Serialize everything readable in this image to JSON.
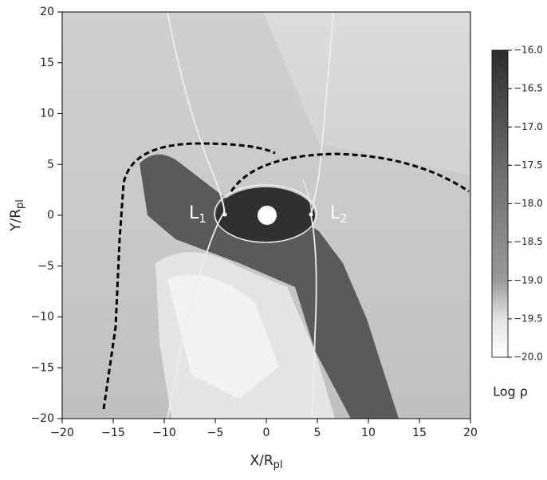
{
  "chart_data": {
    "type": "image",
    "xlabel": {
      "text": "X/R",
      "sub": "pl"
    },
    "ylabel": {
      "text": "Y/R",
      "sub": "pl"
    },
    "xlim": [
      -20,
      20
    ],
    "ylim": [
      -20,
      20
    ],
    "xticks": [
      {
        "value": -20,
        "label": "−20"
      },
      {
        "value": -15,
        "label": "−15"
      },
      {
        "value": -10,
        "label": "−10"
      },
      {
        "value": -5,
        "label": "−5"
      },
      0,
      5,
      10,
      15,
      20
    ],
    "yticks": [
      {
        "value": -20,
        "label": "−20"
      },
      {
        "value": -15,
        "label": "−15"
      },
      {
        "value": -10,
        "label": "−10"
      },
      {
        "value": -5,
        "label": "−5"
      },
      0,
      5,
      10,
      15,
      20
    ],
    "annotations": [
      {
        "text": "L",
        "sub": "1"
      },
      {
        "text": "L",
        "sub": "2"
      }
    ],
    "colorbar": {
      "label": "Log ρ",
      "lim": [
        -20,
        -16
      ],
      "ticks": [
        {
          "value": -20,
          "label": "−20.0"
        },
        {
          "value": -19.5,
          "label": "−19.5"
        },
        {
          "value": -19,
          "label": "−19.0"
        },
        {
          "value": -18.5,
          "label": "−18.5"
        },
        {
          "value": -18,
          "label": "−18.0"
        },
        {
          "value": -17.5,
          "label": "−17.5"
        },
        {
          "value": -17,
          "label": "−17.0"
        },
        {
          "value": -16.5,
          "label": "−16.5"
        },
        {
          "value": -16,
          "label": "−16.0"
        }
      ]
    }
  }
}
